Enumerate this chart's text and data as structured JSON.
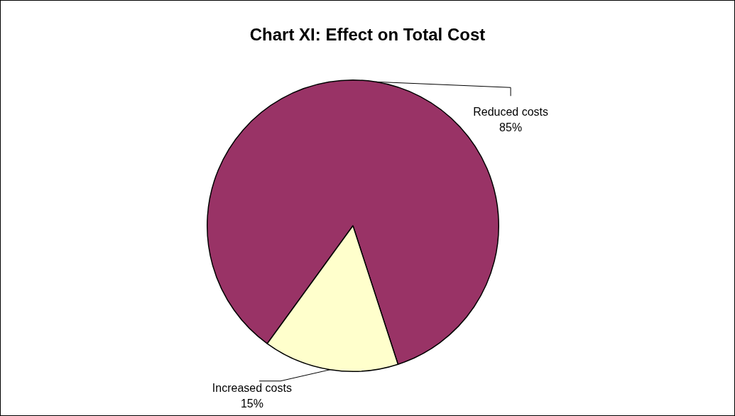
{
  "chart_data": {
    "type": "pie",
    "title": "Chart XI: Effect on Total Cost",
    "categories": [
      "Reduced costs",
      "Increased costs"
    ],
    "values": [
      85,
      15
    ],
    "value_labels": [
      "85%",
      "15%"
    ],
    "colors": [
      "#993366",
      "#ffffcc"
    ],
    "legend": false
  }
}
